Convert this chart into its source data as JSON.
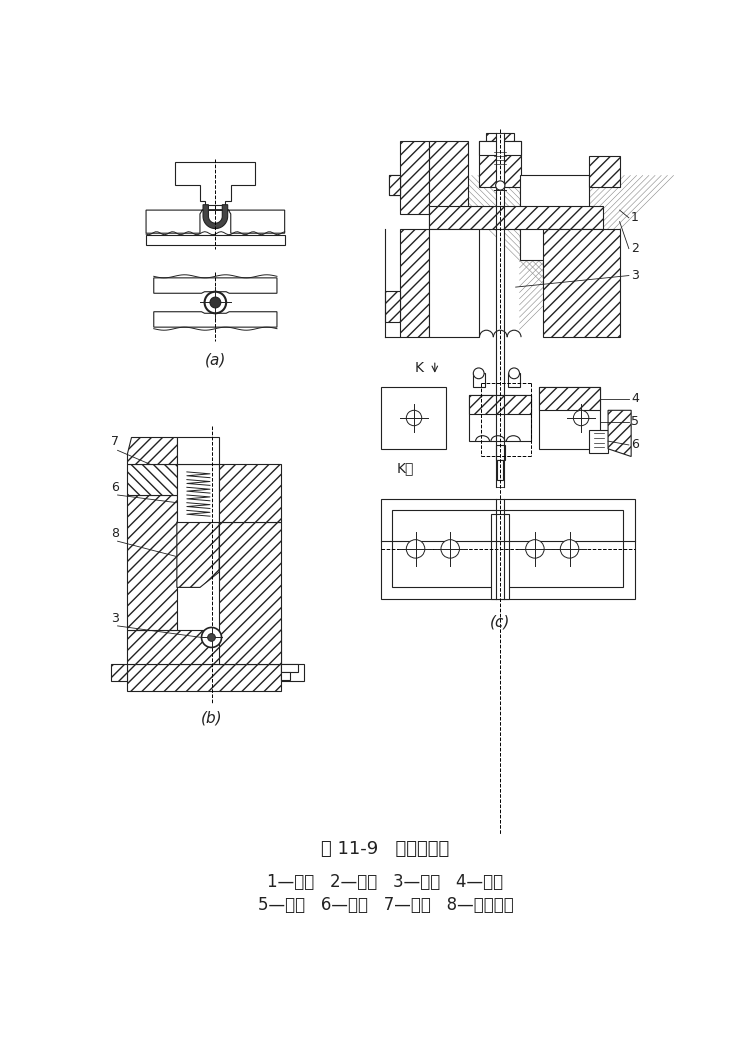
{
  "title": "图 11-9   小圆弯曲模",
  "legend_line1": "1—凸模   2—压板   3—芯棒   4—坯料",
  "legend_line2": "5—凹模   6—滑块   7—侧楔   8—活动凹模",
  "label_a": "(a)",
  "label_b": "(b)",
  "label_c": "(c)",
  "bg_color": "#ffffff",
  "line_color": "#222222",
  "title_fontsize": 13,
  "legend_fontsize": 12,
  "label_fontsize": 11
}
